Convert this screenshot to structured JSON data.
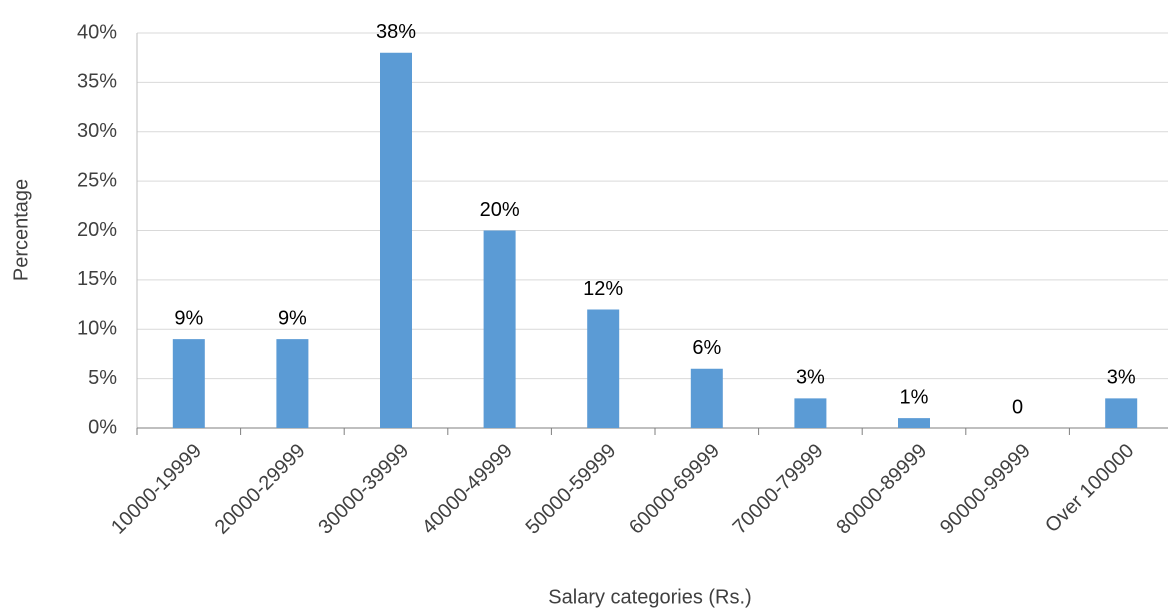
{
  "chart_data": {
    "type": "bar",
    "x_label": "Salary categories (Rs.)",
    "y_label": "Percentage",
    "categories": [
      "10000-19999",
      "20000-29999",
      "30000-39999",
      "40000-49999",
      "50000-59999",
      "60000-69999",
      "70000-79999",
      "80000-89999",
      "90000-99999",
      "Over 100000"
    ],
    "values": [
      9,
      9,
      38,
      20,
      12,
      6,
      3,
      1,
      0,
      3
    ],
    "value_labels": [
      "9%",
      "9%",
      "38%",
      "20%",
      "12%",
      "6%",
      "3%",
      "1%",
      "0",
      "3%"
    ],
    "color": "#5b9bd5",
    "ylim": [
      0,
      40
    ],
    "yticks": [
      {
        "value": 0,
        "label": "0%"
      },
      {
        "value": 5,
        "label": "5%"
      },
      {
        "value": 10,
        "label": "10%"
      },
      {
        "value": 15,
        "label": "15%"
      },
      {
        "value": 20,
        "label": "20%"
      },
      {
        "value": 25,
        "label": "25%"
      },
      {
        "value": 30,
        "label": "30%"
      },
      {
        "value": 35,
        "label": "35%"
      },
      {
        "value": 40,
        "label": "40%"
      }
    ],
    "grid": true
  }
}
